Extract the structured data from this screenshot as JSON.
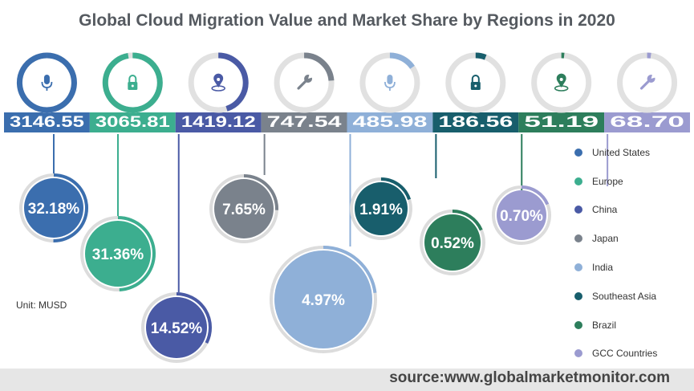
{
  "title": "Global Cloud Migration Value and Market Share by Regions in 2020",
  "unit_label": "Unit:  MUSD",
  "source": "source:www.globalmarketmonitor.com",
  "chart_data": {
    "type": "bar",
    "title": "Global Cloud Migration Value and Market Share by Regions in 2020",
    "unit": "MUSD",
    "legend_position": "right",
    "categories": [
      "United States",
      "Europe",
      "China",
      "Japan",
      "India",
      "Southeast Asia",
      "Brazil",
      "GCC Countries"
    ],
    "values": [
      3146.55,
      3065.81,
      1419.12,
      747.54,
      485.98,
      186.56,
      51.19,
      68.7
    ],
    "value_labels": [
      "3146.55",
      "3065.81",
      "1419.12",
      "747.54",
      "485.98",
      "186.56",
      "51.19",
      "68.70"
    ],
    "shares": [
      32.18,
      31.36,
      14.52,
      7.65,
      4.97,
      1.91,
      0.52,
      0.7
    ],
    "share_labels": [
      "32.18%",
      "31.36%",
      "14.52%",
      "7.65%",
      "4.97%",
      "1.91%",
      "0.52%",
      "0.70%"
    ],
    "colors": [
      "#3b6eae",
      "#3cae8f",
      "#4a5aa5",
      "#7a828c",
      "#8fb0d8",
      "#185e6c",
      "#2d7e5c",
      "#9b9bd0"
    ],
    "icons": [
      "microphone-icon",
      "lock-icon",
      "location-pin-icon",
      "wrench-icon",
      "microphone-icon",
      "lock-icon",
      "location-pin-icon",
      "wrench-icon"
    ]
  }
}
